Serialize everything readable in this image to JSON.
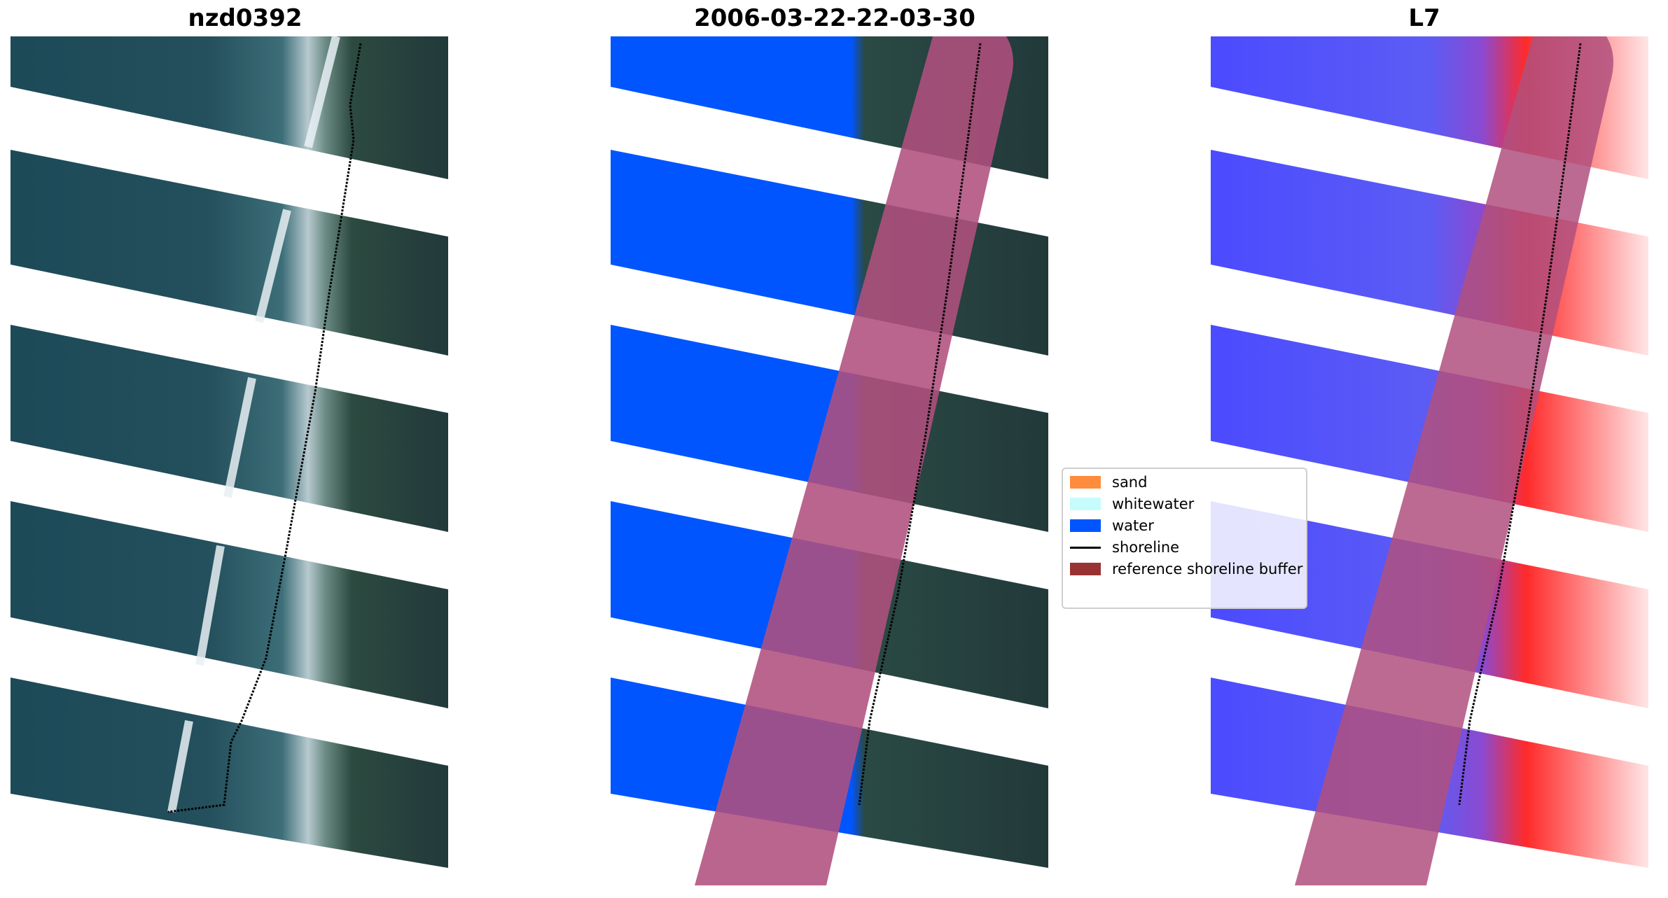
{
  "panels": [
    {
      "title": "nzd0392"
    },
    {
      "title": "2006-03-22-22-03-30"
    },
    {
      "title": "L7"
    }
  ],
  "legend": {
    "items": [
      {
        "label": "sand",
        "color": "#ff8c3c",
        "kind": "patch"
      },
      {
        "label": "whitewater",
        "color": "#c6fcfc",
        "kind": "patch"
      },
      {
        "label": "water",
        "color": "#0055ff",
        "kind": "patch"
      },
      {
        "label": "shoreline",
        "color": "#000000",
        "kind": "line"
      },
      {
        "label": "reference shoreline buffer",
        "color": "#993333",
        "kind": "patch"
      }
    ]
  },
  "colors": {
    "sea": "#1f4e5f",
    "land": "#2a3d3a",
    "surf": "#dce7ee",
    "water_class": "#0055ff",
    "buffer": "#b0507e",
    "index_low": "#5555ff",
    "index_high": "#ff2a2a"
  }
}
